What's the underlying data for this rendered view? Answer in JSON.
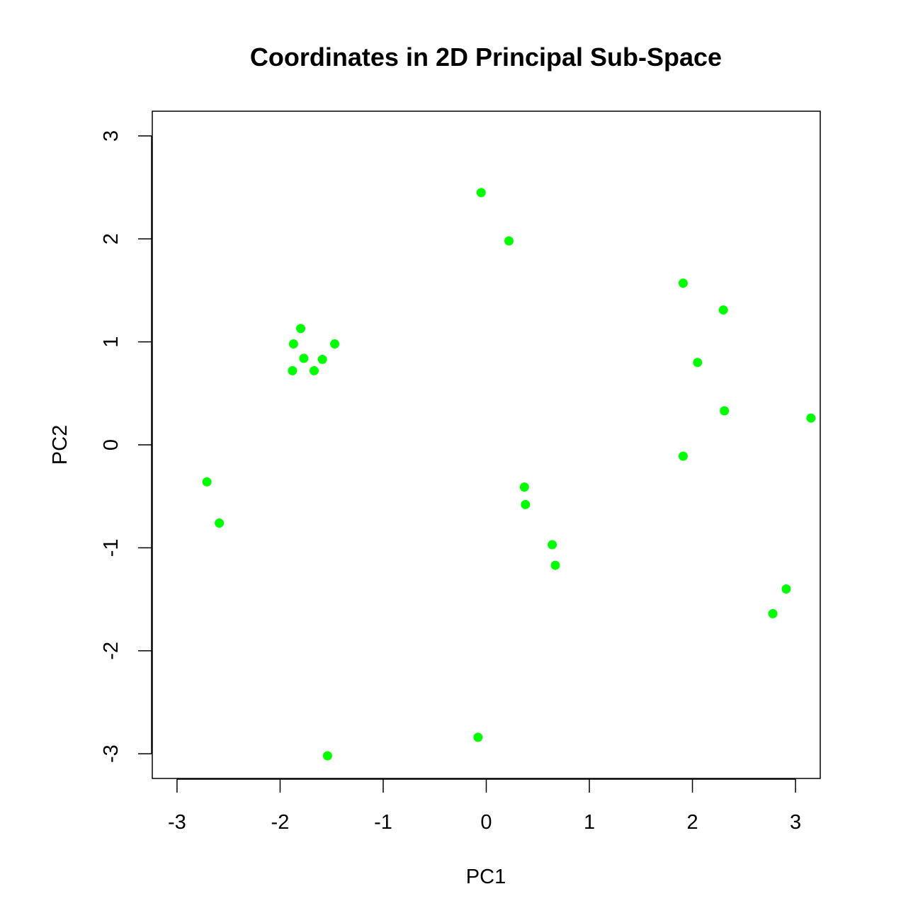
{
  "chart_data": {
    "type": "scatter",
    "title": "Coordinates in 2D Principal Sub-Space",
    "xlabel": "PC1",
    "ylabel": "PC2",
    "xlim": [
      -3.24,
      3.24
    ],
    "ylim": [
      -3.24,
      3.24
    ],
    "x_ticks": [
      -3,
      -2,
      -1,
      0,
      1,
      2,
      3
    ],
    "y_ticks": [
      -3,
      -2,
      -1,
      0,
      1,
      2,
      3
    ],
    "x_tick_labels": [
      "-3",
      "-2",
      "-1",
      "0",
      "1",
      "2",
      "3"
    ],
    "y_tick_labels": [
      "-3",
      "-2",
      "-1",
      "0",
      "1",
      "2",
      "3"
    ],
    "grid": false,
    "point_color": "#00FF00",
    "points": [
      {
        "x": -0.05,
        "y": 2.45
      },
      {
        "x": 0.22,
        "y": 1.98
      },
      {
        "x": 1.91,
        "y": 1.57
      },
      {
        "x": 2.3,
        "y": 1.31
      },
      {
        "x": 2.05,
        "y": 0.8
      },
      {
        "x": 2.31,
        "y": 0.33
      },
      {
        "x": 3.15,
        "y": 0.26
      },
      {
        "x": 1.91,
        "y": -0.11
      },
      {
        "x": -1.8,
        "y": 1.13
      },
      {
        "x": -1.87,
        "y": 0.98
      },
      {
        "x": -1.47,
        "y": 0.98
      },
      {
        "x": -1.77,
        "y": 0.84
      },
      {
        "x": -1.59,
        "y": 0.83
      },
      {
        "x": -1.88,
        "y": 0.72
      },
      {
        "x": -1.67,
        "y": 0.72
      },
      {
        "x": -2.71,
        "y": -0.36
      },
      {
        "x": -2.59,
        "y": -0.76
      },
      {
        "x": 0.37,
        "y": -0.41
      },
      {
        "x": 0.38,
        "y": -0.58
      },
      {
        "x": 0.64,
        "y": -0.97
      },
      {
        "x": 0.67,
        "y": -1.17
      },
      {
        "x": 2.91,
        "y": -1.4
      },
      {
        "x": 2.78,
        "y": -1.64
      },
      {
        "x": -0.08,
        "y": -2.84
      },
      {
        "x": -1.54,
        "y": -3.02
      }
    ]
  }
}
